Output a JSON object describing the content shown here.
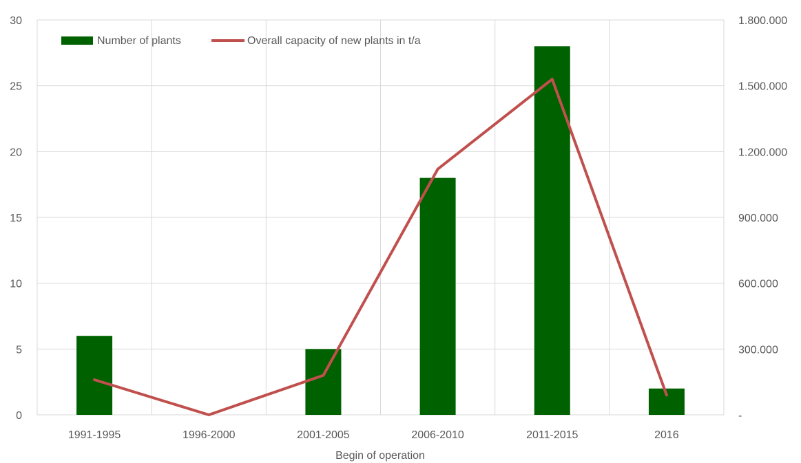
{
  "chart_data": {
    "type": "bar",
    "categories": [
      "1991-1995",
      "1996-2000",
      "2001-2005",
      "2006-2010",
      "2011-2015",
      "2016"
    ],
    "series": [
      {
        "name": "Number of plants",
        "type": "bar",
        "axis": "left",
        "color": "#006100",
        "values": [
          6,
          0,
          5,
          18,
          28,
          2
        ]
      },
      {
        "name": "Overall capacity of new plants in t/a",
        "type": "line",
        "axis": "right",
        "color": "#C0504D",
        "values": [
          160000,
          0,
          180000,
          1120000,
          1530000,
          90000
        ]
      }
    ],
    "xlabel": "Begin of operation",
    "ylabel": "",
    "y2label": "",
    "ylim": [
      0,
      30
    ],
    "y2lim": [
      0,
      1800000
    ],
    "yticks": [
      "0",
      "5",
      "10",
      "15",
      "20",
      "25",
      "30"
    ],
    "y2ticks": [
      "-",
      "300.000",
      "600.000",
      "900.000",
      "1.200.000",
      "1.500.000",
      "1.800.000"
    ],
    "grid": true,
    "legend_position": "top-left"
  }
}
